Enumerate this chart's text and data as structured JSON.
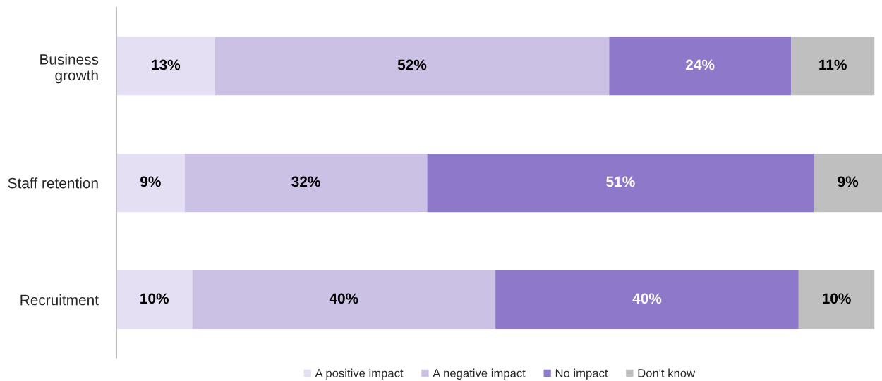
{
  "chart_data": {
    "type": "bar",
    "orientation": "horizontal",
    "stacked": true,
    "legend": "bottom",
    "grid": false,
    "categories": [
      "Business\ngrowth",
      "Staff retention",
      "Recruitment"
    ],
    "series": [
      {
        "name": "A positive impact",
        "color": "#e4dff2",
        "values": [
          13,
          9,
          10
        ],
        "value_labels": [
          "13%",
          "9%",
          "10%"
        ]
      },
      {
        "name": "A negative impact",
        "color": "#cbc1e4",
        "values": [
          52,
          32,
          40
        ],
        "value_labels": [
          "52%",
          "32%",
          "40%"
        ]
      },
      {
        "name": "No impact",
        "color": "#8e78c9",
        "values": [
          24,
          51,
          40
        ],
        "value_labels": [
          "24%",
          "51%",
          "40%"
        ]
      },
      {
        "name": "Don't know",
        "color": "#bfbfbf",
        "values": [
          11,
          9,
          10
        ],
        "value_labels": [
          "11%",
          "9%",
          "10%"
        ]
      }
    ]
  }
}
